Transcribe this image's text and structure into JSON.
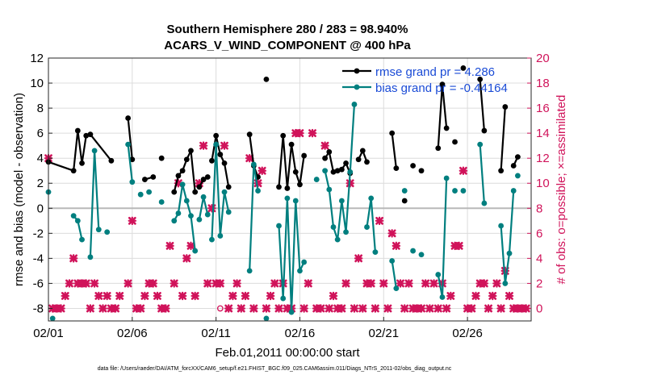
{
  "chart_data": {
    "type": "line",
    "title_line1": "Southern Hemisphere 280 / 283 = 98.940%",
    "title_line2": "ACARS_V_WIND_COMPONENT @ 400 hPa",
    "xlabel": "Feb.01,2011 00:00:00 start",
    "ylabel_left": "rmse and bias (model - observation)",
    "ylabel_right": "# of obs: o=possible; ×=assimilated",
    "footer": "data file: /Users/raeder/DAI/ATM_forcXX/CAM6_setup/f.e21.FHIST_BGC.f09_025.CAM6assim.011/Diags_NTrS_2011-02/obs_diag_output.nc",
    "xlim": [
      0,
      28.8
    ],
    "ylim_left": [
      -9,
      12
    ],
    "ylim_right": [
      -1,
      20
    ],
    "grid": true,
    "legend_position": "top-right",
    "x_tick_values": [
      0,
      5,
      10,
      15,
      20,
      25
    ],
    "x_tick_labels": [
      "02/01",
      "02/06",
      "02/11",
      "02/16",
      "02/21",
      "02/26"
    ],
    "y_left_ticks": [
      -8,
      -6,
      -4,
      -2,
      0,
      2,
      4,
      6,
      8,
      10,
      12
    ],
    "y_right_ticks": [
      0,
      2,
      4,
      6,
      8,
      10,
      12,
      14,
      16,
      18,
      20
    ],
    "colors": {
      "rmse": "#000000",
      "bias": "#007f7f",
      "obs": "#d0135a",
      "zero_line": "#b8b8b8"
    },
    "series": [
      {
        "name": "rmse grand pr = 4.286",
        "axis": "left",
        "segments": [
          {
            "x": [
              0,
              1.5,
              1.75,
              2.0,
              2.25
            ],
            "y": [
              3.7,
              3.0,
              6.2,
              3.6,
              5.8
            ]
          },
          {
            "x": [
              2.5,
              3.75
            ],
            "y": [
              5.9,
              3.8
            ]
          },
          {
            "x": [
              4.75,
              5.0
            ],
            "y": [
              7.2,
              3.9
            ]
          },
          {
            "x": [
              5.75,
              6.25
            ],
            "y": [
              2.3,
              2.5
            ]
          },
          {
            "x": [
              6.75
            ],
            "y": [
              4.0
            ]
          },
          {
            "x": [
              7.5,
              7.75,
              8.0,
              8.25,
              8.5,
              8.75
            ],
            "y": [
              1.3,
              2.6,
              3.0,
              3.9,
              4.6,
              1.3
            ]
          },
          {
            "x": [
              9.0,
              9.25,
              9.5
            ],
            "y": [
              1.7,
              2.3,
              2.5
            ]
          },
          {
            "x": [
              9.75,
              10.0,
              10.25,
              10.5,
              10.75
            ],
            "y": [
              3.8,
              5.8,
              4.3,
              3.6,
              1.7
            ]
          },
          {
            "x": [
              12.0,
              12.25,
              12.5
            ],
            "y": [
              5.9,
              3.4,
              2.5
            ]
          },
          {
            "x": [
              13.0
            ],
            "y": [
              10.3
            ]
          },
          {
            "x": [
              13.75,
              14.0,
              14.25,
              14.5,
              14.75,
              15.0,
              15.25
            ],
            "y": [
              1.7,
              5.8,
              1.6,
              5.1,
              2.9,
              1.9,
              4.2
            ]
          },
          {
            "x": [
              16.5,
              16.75,
              17.0,
              17.25,
              17.5,
              17.75,
              18.0
            ],
            "y": [
              4.0,
              4.5,
              2.9,
              3.0,
              3.1,
              3.6,
              2.8
            ]
          },
          {
            "x": [
              18.5,
              18.75,
              19.0
            ],
            "y": [
              3.9,
              4.6,
              3.7
            ]
          },
          {
            "x": [
              20.5,
              20.75
            ],
            "y": [
              6.0,
              3.2
            ]
          },
          {
            "x": [
              21.25
            ],
            "y": [
              0.6
            ]
          },
          {
            "x": [
              21.75
            ],
            "y": [
              3.4
            ]
          },
          {
            "x": [
              22.25
            ],
            "y": [
              3.0
            ]
          },
          {
            "x": [
              23.25,
              23.5,
              23.75
            ],
            "y": [
              4.8,
              9.9,
              6.4
            ]
          },
          {
            "x": [
              24.25
            ],
            "y": [
              5.3
            ]
          },
          {
            "x": [
              24.75
            ],
            "y": [
              11.2
            ]
          },
          {
            "x": [
              25.75,
              26.0
            ],
            "y": [
              10.3,
              6.2
            ]
          },
          {
            "x": [
              27.0,
              27.25
            ],
            "y": [
              3.0,
              8.1
            ]
          },
          {
            "x": [
              27.75,
              28.0
            ],
            "y": [
              3.4,
              4.1
            ]
          }
        ]
      },
      {
        "name": "bias grand pr = -0.44164",
        "axis": "left",
        "segments": [
          {
            "x": [
              0
            ],
            "y": [
              1.3
            ]
          },
          {
            "x": [
              0.25
            ],
            "y": [
              -8.8
            ]
          },
          {
            "x": [
              1.5,
              1.75,
              2.0
            ],
            "y": [
              -0.6,
              -1.0,
              -2.5
            ]
          },
          {
            "x": [
              2.5,
              2.75,
              3.0
            ],
            "y": [
              -3.9,
              4.6,
              -1.7
            ]
          },
          {
            "x": [
              3.5
            ],
            "y": [
              -1.9
            ]
          },
          {
            "x": [
              4.75,
              5.0
            ],
            "y": [
              5.1,
              2.1
            ]
          },
          {
            "x": [
              5.5
            ],
            "y": [
              1.1
            ]
          },
          {
            "x": [
              6.0
            ],
            "y": [
              1.3
            ]
          },
          {
            "x": [
              6.75
            ],
            "y": [
              0.5
            ]
          },
          {
            "x": [
              7.5,
              7.75,
              8.0,
              8.25,
              8.5,
              8.75
            ],
            "y": [
              -1.0,
              -0.4,
              1.9,
              0.6,
              -0.6,
              -3.4
            ]
          },
          {
            "x": [
              9.0,
              9.25,
              9.5
            ],
            "y": [
              -0.9,
              0.9,
              -0.5
            ]
          },
          {
            "x": [
              9.75,
              10.0,
              10.25,
              10.5,
              10.75
            ],
            "y": [
              -2.5,
              5.1,
              -2.2,
              1.3,
              -0.3
            ]
          },
          {
            "x": [
              12.0,
              12.25,
              12.5
            ],
            "y": [
              -5.0,
              3.5,
              1.4
            ]
          },
          {
            "x": [
              13.0
            ],
            "y": [
              -8.8
            ]
          },
          {
            "x": [
              13.75,
              14.0,
              14.25,
              14.5,
              14.75,
              15.0,
              15.25
            ],
            "y": [
              -1.4,
              -7.2,
              0.8,
              -8.3,
              0.6,
              -5.0,
              -4.3
            ]
          },
          {
            "x": [
              16.0
            ],
            "y": [
              2.3
            ]
          },
          {
            "x": [
              16.5,
              16.75,
              17.0,
              17.25,
              17.5,
              17.75,
              18.0,
              18.25
            ],
            "y": [
              3.0,
              1.5,
              -1.5,
              -2.5,
              0.6,
              -1.9,
              2.9,
              8.3
            ]
          },
          {
            "x": [
              19.0,
              19.25,
              19.5
            ],
            "y": [
              -1.5,
              0.8,
              -3.5
            ]
          },
          {
            "x": [
              20.5,
              20.75
            ],
            "y": [
              -4.2,
              -6.4
            ]
          },
          {
            "x": [
              21.25
            ],
            "y": [
              1.4
            ]
          },
          {
            "x": [
              21.75
            ],
            "y": [
              -3.4
            ]
          },
          {
            "x": [
              22.25
            ],
            "y": [
              -3.7
            ]
          },
          {
            "x": [
              23.25,
              23.5,
              23.75
            ],
            "y": [
              -5.3,
              -7.1,
              2.4
            ]
          },
          {
            "x": [
              24.25
            ],
            "y": [
              1.4
            ]
          },
          {
            "x": [
              24.75
            ],
            "y": [
              1.4
            ]
          },
          {
            "x": [
              25.75,
              26.0
            ],
            "y": [
              5.1,
              0.4
            ]
          },
          {
            "x": [
              27.0,
              27.25,
              27.5,
              27.75
            ],
            "y": [
              -1.4,
              -6.0,
              -3.6,
              1.4
            ]
          },
          {
            "x": [
              28.0
            ],
            "y": [
              2.6
            ]
          }
        ]
      }
    ],
    "obs_possible_open_markers": [
      {
        "x": 10.25,
        "y": 0
      }
    ],
    "obs_assimilated": [
      {
        "x": 0,
        "y": 12
      },
      {
        "x": 0.25,
        "y": 0
      },
      {
        "x": 0.5,
        "y": 0
      },
      {
        "x": 0.75,
        "y": 0
      },
      {
        "x": 1.0,
        "y": 1
      },
      {
        "x": 1.25,
        "y": 2
      },
      {
        "x": 1.5,
        "y": 4
      },
      {
        "x": 1.75,
        "y": 2
      },
      {
        "x": 2.0,
        "y": 2
      },
      {
        "x": 2.25,
        "y": 2
      },
      {
        "x": 2.5,
        "y": 0
      },
      {
        "x": 2.75,
        "y": 2
      },
      {
        "x": 3.0,
        "y": 1
      },
      {
        "x": 3.25,
        "y": 0
      },
      {
        "x": 3.5,
        "y": 1
      },
      {
        "x": 3.75,
        "y": 0
      },
      {
        "x": 4.0,
        "y": 0
      },
      {
        "x": 4.25,
        "y": 1
      },
      {
        "x": 4.75,
        "y": 2
      },
      {
        "x": 5.0,
        "y": 7
      },
      {
        "x": 5.25,
        "y": 0
      },
      {
        "x": 5.5,
        "y": 0
      },
      {
        "x": 5.75,
        "y": 1
      },
      {
        "x": 6.0,
        "y": 2
      },
      {
        "x": 6.25,
        "y": 2
      },
      {
        "x": 6.5,
        "y": 1
      },
      {
        "x": 6.75,
        "y": 0
      },
      {
        "x": 7.0,
        "y": 0
      },
      {
        "x": 7.25,
        "y": 5
      },
      {
        "x": 7.5,
        "y": 2
      },
      {
        "x": 7.75,
        "y": 10
      },
      {
        "x": 8.0,
        "y": 1
      },
      {
        "x": 8.25,
        "y": 4
      },
      {
        "x": 8.5,
        "y": 5
      },
      {
        "x": 8.75,
        "y": 1
      },
      {
        "x": 9.0,
        "y": 10
      },
      {
        "x": 9.25,
        "y": 13
      },
      {
        "x": 9.5,
        "y": 2
      },
      {
        "x": 9.75,
        "y": 8
      },
      {
        "x": 10.0,
        "y": 2
      },
      {
        "x": 10.25,
        "y": 2
      },
      {
        "x": 10.5,
        "y": 13
      },
      {
        "x": 10.75,
        "y": 0
      },
      {
        "x": 11.0,
        "y": 1
      },
      {
        "x": 11.25,
        "y": 2
      },
      {
        "x": 11.5,
        "y": 0
      },
      {
        "x": 11.75,
        "y": 1
      },
      {
        "x": 12.0,
        "y": 12
      },
      {
        "x": 12.25,
        "y": 0
      },
      {
        "x": 12.5,
        "y": 10
      },
      {
        "x": 12.75,
        "y": 11
      },
      {
        "x": 13.0,
        "y": 0
      },
      {
        "x": 13.25,
        "y": 1
      },
      {
        "x": 13.5,
        "y": 2
      },
      {
        "x": 13.75,
        "y": 0
      },
      {
        "x": 14.0,
        "y": 2
      },
      {
        "x": 14.25,
        "y": 0
      },
      {
        "x": 14.5,
        "y": 0
      },
      {
        "x": 14.75,
        "y": 14
      },
      {
        "x": 15.0,
        "y": 14
      },
      {
        "x": 15.25,
        "y": 0
      },
      {
        "x": 15.5,
        "y": 2
      },
      {
        "x": 15.75,
        "y": 14
      },
      {
        "x": 16.0,
        "y": 0
      },
      {
        "x": 16.25,
        "y": 0
      },
      {
        "x": 16.5,
        "y": 13
      },
      {
        "x": 16.75,
        "y": 0
      },
      {
        "x": 17.0,
        "y": 1
      },
      {
        "x": 17.25,
        "y": 0
      },
      {
        "x": 17.5,
        "y": 0
      },
      {
        "x": 17.75,
        "y": 2
      },
      {
        "x": 18.0,
        "y": 10
      },
      {
        "x": 18.25,
        "y": 0
      },
      {
        "x": 18.5,
        "y": 4
      },
      {
        "x": 18.75,
        "y": 0
      },
      {
        "x": 19.0,
        "y": 2
      },
      {
        "x": 19.25,
        "y": 2
      },
      {
        "x": 19.5,
        "y": 0
      },
      {
        "x": 19.75,
        "y": 7
      },
      {
        "x": 20.0,
        "y": 2
      },
      {
        "x": 20.25,
        "y": 0
      },
      {
        "x": 20.5,
        "y": 6
      },
      {
        "x": 20.75,
        "y": 5
      },
      {
        "x": 21.0,
        "y": 2
      },
      {
        "x": 21.25,
        "y": 0
      },
      {
        "x": 21.5,
        "y": 2
      },
      {
        "x": 21.75,
        "y": 0
      },
      {
        "x": 22.0,
        "y": 0
      },
      {
        "x": 22.25,
        "y": 0
      },
      {
        "x": 22.5,
        "y": 2
      },
      {
        "x": 22.75,
        "y": 0
      },
      {
        "x": 23.0,
        "y": 2
      },
      {
        "x": 23.25,
        "y": 0
      },
      {
        "x": 23.5,
        "y": 2
      },
      {
        "x": 23.75,
        "y": 0
      },
      {
        "x": 24.0,
        "y": 1
      },
      {
        "x": 24.25,
        "y": 5
      },
      {
        "x": 24.5,
        "y": 5
      },
      {
        "x": 24.75,
        "y": 11
      },
      {
        "x": 25.0,
        "y": 0
      },
      {
        "x": 25.25,
        "y": 0
      },
      {
        "x": 25.5,
        "y": 1
      },
      {
        "x": 25.75,
        "y": 2
      },
      {
        "x": 26.0,
        "y": 2
      },
      {
        "x": 26.25,
        "y": 0
      },
      {
        "x": 26.5,
        "y": 1
      },
      {
        "x": 26.75,
        "y": 2
      },
      {
        "x": 27.0,
        "y": 0
      },
      {
        "x": 27.25,
        "y": 3
      },
      {
        "x": 27.5,
        "y": 1
      },
      {
        "x": 27.75,
        "y": 0
      },
      {
        "x": 28.0,
        "y": 0
      },
      {
        "x": 28.25,
        "y": 0
      },
      {
        "x": 28.5,
        "y": 0
      }
    ]
  }
}
